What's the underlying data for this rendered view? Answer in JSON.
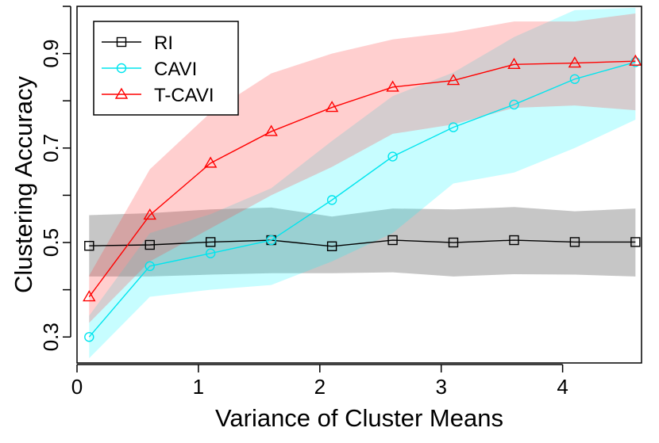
{
  "chart_data": {
    "type": "line",
    "title": "",
    "xlabel": "Variance of Cluster Means",
    "ylabel": "Clustering Accuracy",
    "xlim": [
      0,
      4.65
    ],
    "ylim": [
      0.245,
      1.0
    ],
    "xticks": [
      0,
      1,
      2,
      3,
      4
    ],
    "xtick_labels": [
      "0",
      "1",
      "2",
      "3",
      "4"
    ],
    "yticks": [
      0.3,
      0.4,
      0.5,
      0.6,
      0.7,
      0.8,
      0.9,
      1.0
    ],
    "ytick_labels": [
      "0.3",
      "",
      "0.5",
      "",
      "0.7",
      "",
      "0.9",
      ""
    ],
    "grid": false,
    "legend_position": "top-left",
    "x": [
      0.1,
      0.6,
      1.1,
      1.6,
      2.1,
      2.6,
      3.1,
      3.6,
      4.1,
      4.6
    ],
    "series": [
      {
        "name": "RI",
        "color": "#000000",
        "band_color": "#808080",
        "band_opacity": 0.45,
        "marker": "square",
        "values": [
          0.493,
          0.495,
          0.501,
          0.505,
          0.492,
          0.505,
          0.5,
          0.505,
          0.501,
          0.501
        ],
        "lower": [
          0.428,
          0.428,
          0.432,
          0.435,
          0.435,
          0.437,
          0.428,
          0.433,
          0.432,
          0.428
        ],
        "upper": [
          0.558,
          0.562,
          0.57,
          0.574,
          0.555,
          0.572,
          0.57,
          0.575,
          0.566,
          0.572
        ]
      },
      {
        "name": "CAVI",
        "color": "#00e5ee",
        "band_color": "#00f5ff",
        "band_opacity": 0.22,
        "marker": "circle",
        "values": [
          0.3,
          0.45,
          0.477,
          0.505,
          0.59,
          0.682,
          0.744,
          0.792,
          0.846,
          0.882
        ],
        "lower": [
          0.255,
          0.385,
          0.4,
          0.41,
          0.46,
          0.52,
          0.625,
          0.648,
          0.7,
          0.76
        ],
        "upper": [
          0.345,
          0.52,
          0.56,
          0.615,
          0.715,
          0.81,
          0.86,
          0.935,
          0.992,
          0.997
        ]
      },
      {
        "name": "T-CAVI",
        "color": "#ff0000",
        "band_color": "#ff4040",
        "band_opacity": 0.25,
        "marker": "triangle",
        "values": [
          0.385,
          0.558,
          0.668,
          0.735,
          0.786,
          0.829,
          0.843,
          0.877,
          0.88,
          0.884
        ],
        "lower": [
          0.33,
          0.46,
          0.53,
          0.6,
          0.66,
          0.73,
          0.75,
          0.785,
          0.79,
          0.78
        ],
        "upper": [
          0.43,
          0.655,
          0.775,
          0.858,
          0.9,
          0.93,
          0.945,
          0.968,
          0.968,
          0.985
        ]
      }
    ]
  }
}
